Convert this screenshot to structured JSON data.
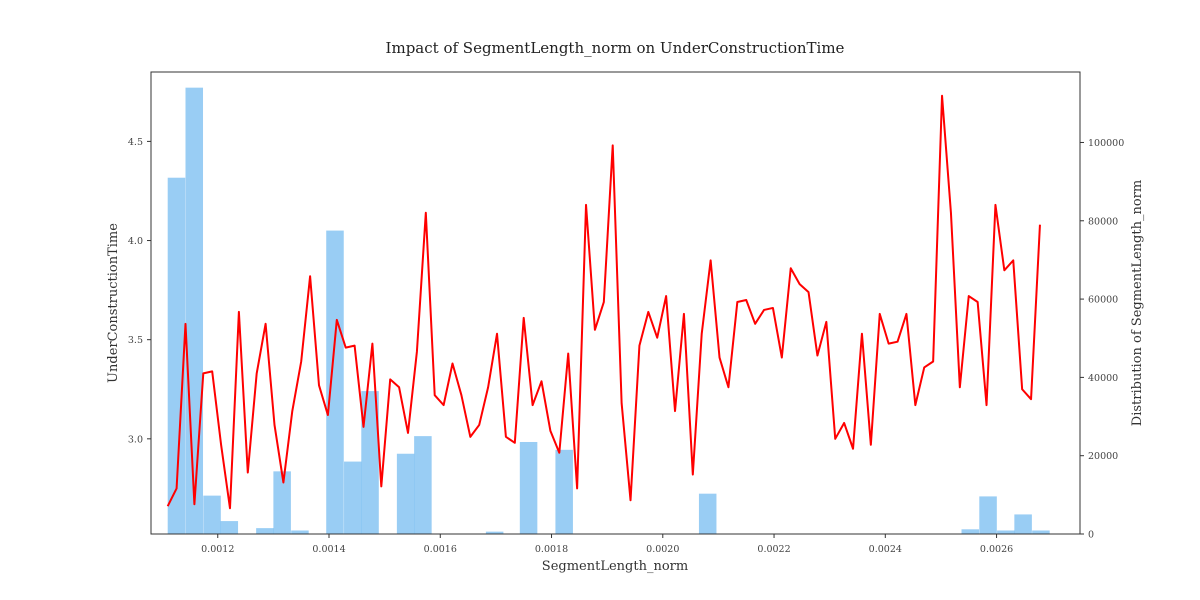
{
  "chart_data": {
    "type": "bar",
    "title": "Impact of SegmentLength_norm on UnderConstructionTime",
    "xlabel": "SegmentLength_norm",
    "ylabel": "UnderConstructionTime",
    "y2label": "Distribution of SegmentLength_norm",
    "xlim": [
      0.00108,
      0.00275
    ],
    "ylim": [
      2.52,
      4.85
    ],
    "y2lim": [
      0,
      118000
    ],
    "xticks": [
      "0.0012",
      "0.0014",
      "0.0016",
      "0.0018",
      "0.0020",
      "0.0022",
      "0.0024",
      "0.0026"
    ],
    "xtick_values": [
      0.0012,
      0.0014,
      0.0016,
      0.0018,
      0.002,
      0.0022,
      0.0024,
      0.0026
    ],
    "yticks": [
      "3.0",
      "3.5",
      "4.0",
      "4.5"
    ],
    "ytick_values": [
      3.0,
      3.5,
      4.0,
      4.5
    ],
    "y2ticks": [
      "0",
      "20000",
      "40000",
      "60000",
      "80000",
      "100000"
    ],
    "y2tick_values": [
      0,
      20000,
      40000,
      60000,
      80000,
      100000
    ],
    "grid": false,
    "series": [
      {
        "kind": "histogram",
        "axis": "right",
        "color": "#5aaeee",
        "opacity": 0.62,
        "bin_width": 3.15e-05,
        "bins": [
          {
            "x": 0.00111,
            "count": 91000
          },
          {
            "x": 0.001142,
            "count": 114000
          },
          {
            "x": 0.001174,
            "count": 9800
          },
          {
            "x": 0.001205,
            "count": 3300
          },
          {
            "x": 0.001269,
            "count": 1500
          },
          {
            "x": 0.0013,
            "count": 16000
          },
          {
            "x": 0.001332,
            "count": 900
          },
          {
            "x": 0.001395,
            "count": 77500
          },
          {
            "x": 0.001427,
            "count": 18500
          },
          {
            "x": 0.001458,
            "count": 36500
          },
          {
            "x": 0.001522,
            "count": 20500
          },
          {
            "x": 0.001553,
            "count": 25000
          },
          {
            "x": 0.001682,
            "count": 600
          },
          {
            "x": 0.001743,
            "count": 23500
          },
          {
            "x": 0.001807,
            "count": 21500
          },
          {
            "x": 0.002065,
            "count": 10300
          },
          {
            "x": 0.002537,
            "count": 1200
          },
          {
            "x": 0.002569,
            "count": 9600
          },
          {
            "x": 0.002601,
            "count": 900
          },
          {
            "x": 0.002632,
            "count": 5000
          },
          {
            "x": 0.002664,
            "count": 900
          }
        ]
      },
      {
        "kind": "line",
        "axis": "left",
        "color": "#ff0000",
        "x": [
          0.00111,
          0.001126,
          0.001142,
          0.001158,
          0.001174,
          0.00119,
          0.001206,
          0.001222,
          0.001238,
          0.001254,
          0.00127,
          0.001286,
          0.001302,
          0.001318,
          0.001334,
          0.00135,
          0.001366,
          0.001382,
          0.001398,
          0.001414,
          0.00143,
          0.001446,
          0.001462,
          0.001478,
          0.001494,
          0.00151,
          0.001526,
          0.001542,
          0.001558,
          0.001574,
          0.00159,
          0.001606,
          0.001622,
          0.001638,
          0.001654,
          0.00167,
          0.001686,
          0.001702,
          0.001718,
          0.001734,
          0.00175,
          0.001766,
          0.001782,
          0.001798,
          0.001814,
          0.00183,
          0.001846,
          0.001862,
          0.001878,
          0.001894,
          0.00191,
          0.001926,
          0.001942,
          0.001958,
          0.001974,
          0.00199,
          0.002006,
          0.002022,
          0.002038,
          0.002054,
          0.00207,
          0.002086,
          0.002102,
          0.002118,
          0.002134,
          0.00215,
          0.002166,
          0.002182,
          0.002198,
          0.002214,
          0.00223,
          0.002246,
          0.002262,
          0.002278,
          0.002294,
          0.00231,
          0.002326,
          0.002342,
          0.002358,
          0.002374,
          0.00239,
          0.002406,
          0.002422,
          0.002438,
          0.002454,
          0.00247,
          0.002486,
          0.002502,
          0.002518,
          0.002534,
          0.00255,
          0.002566,
          0.002582,
          0.002598,
          0.002614,
          0.00263,
          0.002646,
          0.002662,
          0.002678
        ],
        "y": [
          2.66,
          2.75,
          3.58,
          2.67,
          3.33,
          3.34,
          2.97,
          2.65,
          3.64,
          2.83,
          3.33,
          3.58,
          3.07,
          2.78,
          3.14,
          3.39,
          3.82,
          3.27,
          3.12,
          3.6,
          3.46,
          3.47,
          3.06,
          3.48,
          2.76,
          3.3,
          3.26,
          3.03,
          3.44,
          4.14,
          3.22,
          3.17,
          3.38,
          3.22,
          3.01,
          3.07,
          3.26,
          3.53,
          3.01,
          2.98,
          3.61,
          3.17,
          3.29,
          3.04,
          2.93,
          3.43,
          2.75,
          4.18,
          3.55,
          3.69,
          4.48,
          3.18,
          2.69,
          3.47,
          3.64,
          3.51,
          3.72,
          3.14,
          3.63,
          2.82,
          3.53,
          3.9,
          3.41,
          3.26,
          3.69,
          3.7,
          3.58,
          3.65,
          3.66,
          3.41,
          3.86,
          3.78,
          3.74,
          3.42,
          3.59,
          3.0,
          3.08,
          2.95,
          3.53,
          2.97,
          3.63,
          3.48,
          3.49,
          3.63,
          3.17,
          3.36,
          3.39,
          4.73,
          4.14,
          3.26,
          3.72,
          3.69,
          3.17,
          4.18,
          3.85,
          3.9,
          3.25,
          3.2,
          4.08
        ]
      }
    ]
  }
}
